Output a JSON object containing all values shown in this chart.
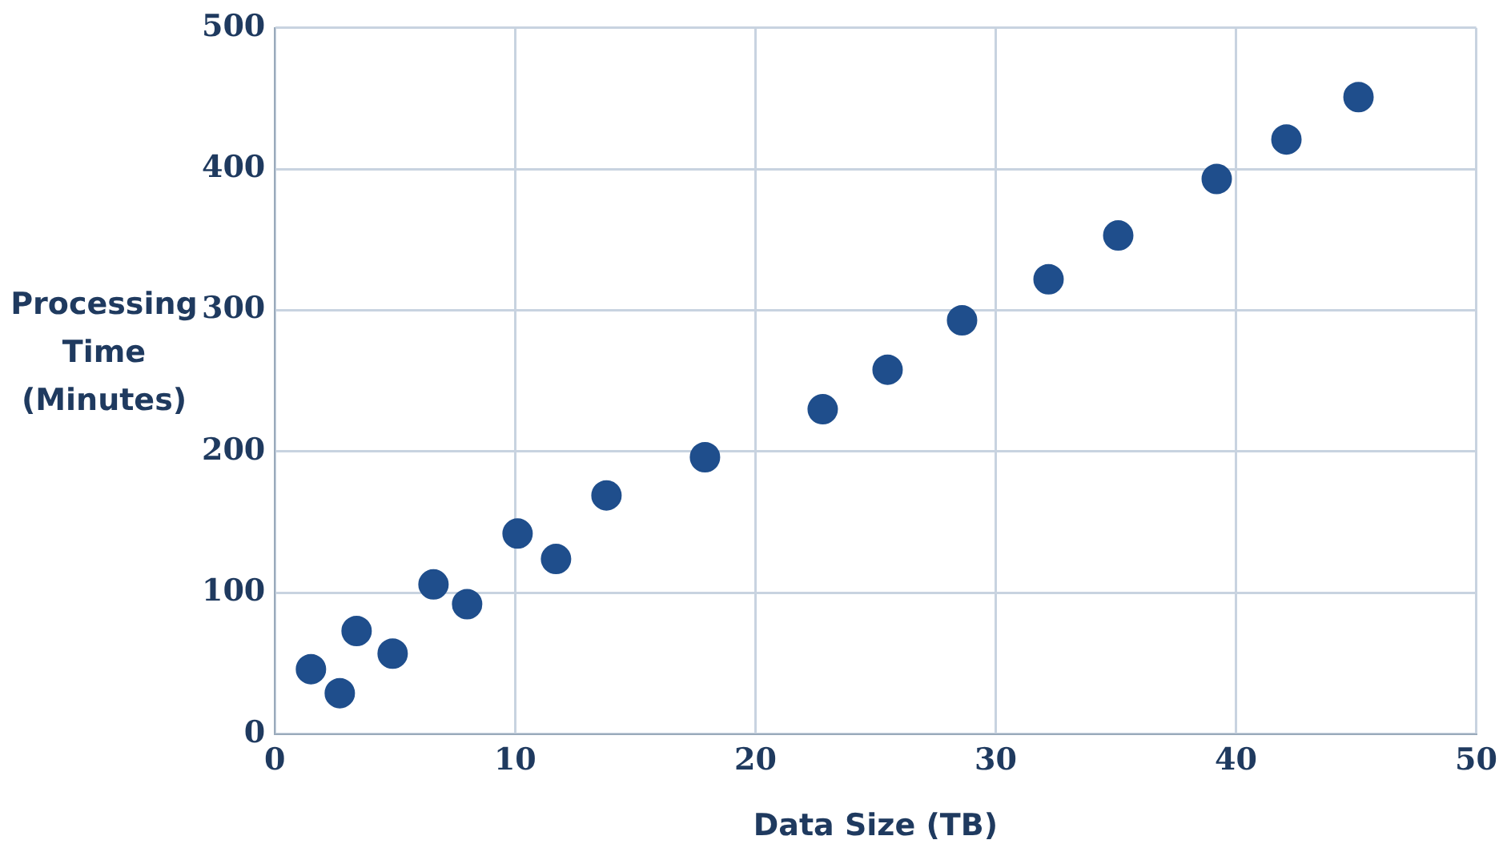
{
  "chart_data": {
    "type": "scatter",
    "xlabel": "Data Size (TB)",
    "ylabel": "Processing Time (Minutes)",
    "x": [
      1.5,
      2.7,
      3.4,
      4.9,
      6.6,
      8.0,
      10.1,
      11.7,
      13.8,
      17.9,
      22.8,
      25.5,
      28.6,
      32.2,
      35.1,
      39.2,
      42.1,
      45.1
    ],
    "series": [
      {
        "color": "#1f4e8c",
        "values": [
          46,
          29,
          73,
          57,
          106,
          92,
          142,
          124,
          169,
          196,
          230,
          258,
          293,
          322,
          353,
          393,
          421,
          451
        ]
      }
    ],
    "xlim": [
      0,
      50
    ],
    "xticks": [
      0,
      10,
      20,
      30,
      40,
      50
    ],
    "ylim": [
      0,
      500
    ],
    "yticks": [
      0,
      100,
      200,
      300,
      400,
      500
    ],
    "grid": true,
    "marker": "circle",
    "legend": false
  }
}
